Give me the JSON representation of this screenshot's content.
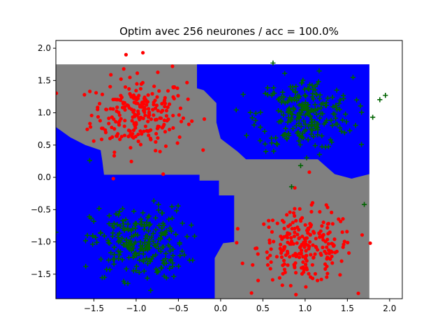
{
  "chart_data": {
    "type": "scatter",
    "title": "Optim avec 256 neurones / acc = 100.0%",
    "xlabel": "",
    "ylabel": "",
    "xlim": [
      -1.95,
      2.15
    ],
    "ylim": [
      -1.88,
      2.12
    ],
    "grid": false,
    "x_ticks": [
      -1.5,
      -1.0,
      -0.5,
      0.0,
      0.5,
      1.0,
      1.5,
      2.0
    ],
    "x_tick_labels": [
      "−1.5",
      "−1.0",
      "−0.5",
      "0.0",
      "0.5",
      "1.0",
      "1.5",
      "2.0"
    ],
    "y_ticks": [
      -1.5,
      -1.0,
      -0.5,
      0.0,
      0.5,
      1.0,
      1.5,
      2.0
    ],
    "y_tick_labels": [
      "−1.5",
      "−1.0",
      "−0.5",
      "0.0",
      "0.5",
      "1.0",
      "1.5",
      "2.0"
    ],
    "colors": {
      "class_red": "#ff0000",
      "class_green": "#006400",
      "region_red": "#808080",
      "region_green": "#0000ff",
      "background": "#ffffff"
    },
    "decision_region_extent": {
      "x": [
        -1.95,
        1.76
      ],
      "y": [
        -1.88,
        1.75
      ]
    },
    "green_region_polygons": [
      [
        [
          -1.95,
          0.78
        ],
        [
          -1.78,
          0.62
        ],
        [
          -1.6,
          0.5
        ],
        [
          -1.42,
          0.42
        ],
        [
          -1.4,
          0.25
        ],
        [
          -1.38,
          0.04
        ],
        [
          -0.25,
          0.04
        ],
        [
          -0.25,
          -0.05
        ],
        [
          -0.02,
          -0.05
        ],
        [
          -0.02,
          -0.28
        ],
        [
          0.16,
          -0.28
        ],
        [
          0.16,
          -1.0
        ],
        [
          0.03,
          -1.02
        ],
        [
          -0.07,
          -1.25
        ],
        [
          -0.07,
          -1.88
        ],
        [
          -1.95,
          -1.88
        ]
      ],
      [
        [
          -0.28,
          1.75
        ],
        [
          1.76,
          1.75
        ],
        [
          1.76,
          0.05
        ],
        [
          1.55,
          -0.02
        ],
        [
          1.35,
          0.05
        ],
        [
          1.15,
          0.28
        ],
        [
          0.3,
          0.28
        ],
        [
          0.2,
          0.4
        ],
        [
          0.0,
          0.6
        ],
        [
          -0.05,
          0.85
        ],
        [
          -0.05,
          1.15
        ],
        [
          -0.2,
          1.35
        ],
        [
          -0.28,
          1.38
        ]
      ]
    ],
    "series": [
      {
        "name": "class red",
        "marker": "circle",
        "clusters": [
          {
            "center": [
              -0.97,
              0.98
            ],
            "spread": 0.28,
            "count": 240
          },
          {
            "center": [
              1.0,
              -1.08
            ],
            "spread": 0.28,
            "count": 240
          }
        ],
        "outliers": [
          [
            -1.12,
            1.9
          ],
          [
            -0.92,
            1.93
          ],
          [
            -0.57,
            1.72
          ],
          [
            -1.27,
            -0.02
          ],
          [
            1.05,
            0.08
          ],
          [
            1.77,
            -1.02
          ],
          [
            -0.68,
            0.05
          ]
        ]
      },
      {
        "name": "class green",
        "marker": "plus",
        "clusters": [
          {
            "center": [
              1.0,
              0.98
            ],
            "spread": 0.28,
            "count": 240
          },
          {
            "center": [
              -0.97,
              -1.02
            ],
            "spread": 0.28,
            "count": 240
          }
        ],
        "outliers": [
          [
            1.95,
            1.27
          ],
          [
            1.8,
            0.93
          ],
          [
            0.62,
            1.77
          ],
          [
            -1.95,
            -0.85
          ],
          [
            1.7,
            -0.42
          ],
          [
            -1.55,
            0.26
          ]
        ]
      }
    ]
  }
}
